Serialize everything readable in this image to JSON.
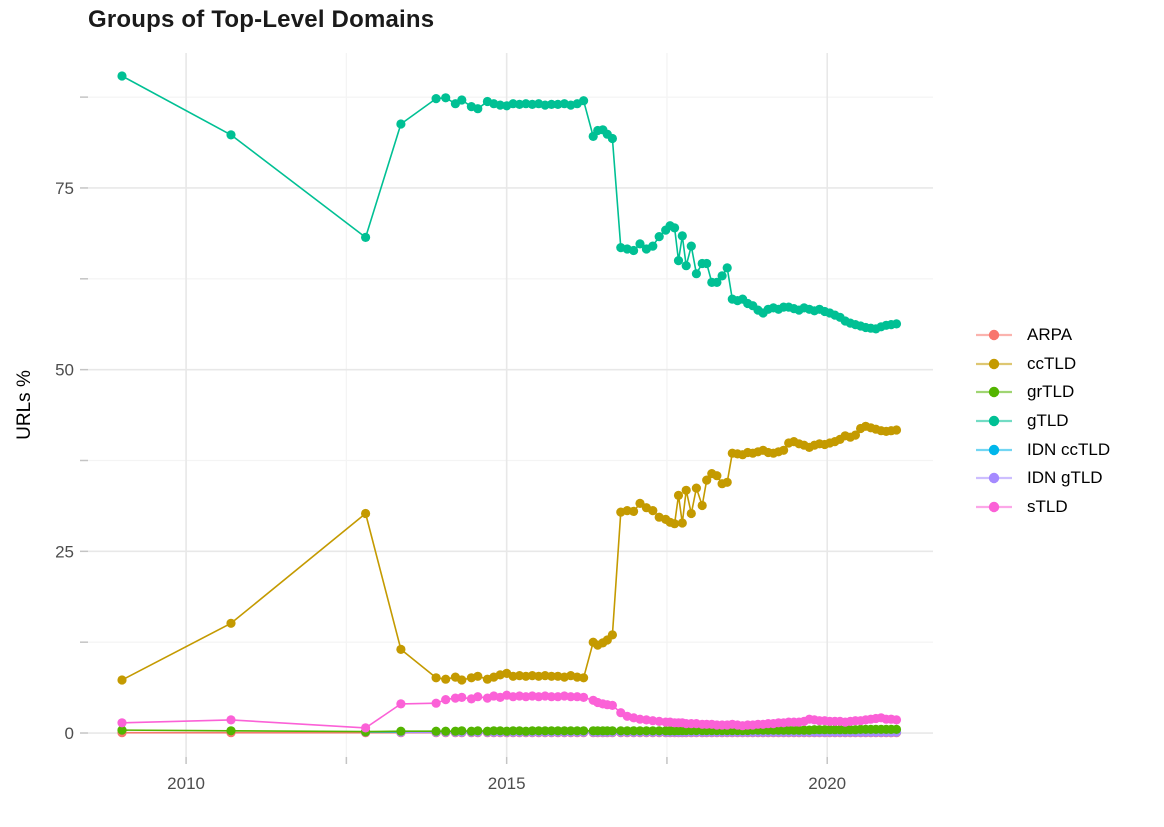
{
  "title": "Groups of Top-Level Domains",
  "y_axis": {
    "label": "URLs %",
    "tick_labels": [
      "0",
      "25",
      "50",
      "75"
    ],
    "tick_values": [
      0,
      25,
      50,
      75
    ],
    "minor_values": [
      12.5,
      37.5,
      62.5,
      87.5
    ]
  },
  "x_axis": {
    "tick_labels": [
      "2010",
      "2015",
      "2020"
    ],
    "tick_values": [
      2010,
      2015,
      2020
    ],
    "minor_values": [
      2012.5,
      2017.5
    ]
  },
  "colors": {
    "background": "#ffffff",
    "grid_major": "#e8e8e8",
    "grid_minor": "#f4f4f4",
    "tick_mark": "#c4c4c4",
    "axis_text": "#4d4d4d",
    "title_text": "#1a1a1a"
  },
  "legend": {
    "entries": [
      {
        "label": "ARPA",
        "color": "#F8766D"
      },
      {
        "label": "ccTLD",
        "color": "#C49A00"
      },
      {
        "label": "grTLD",
        "color": "#53B400"
      },
      {
        "label": "gTLD",
        "color": "#00C094"
      },
      {
        "label": "IDN ccTLD",
        "color": "#00B6EB"
      },
      {
        "label": "IDN gTLD",
        "color": "#A58AFF"
      },
      {
        "label": "sTLD",
        "color": "#FB61D7"
      }
    ]
  },
  "chart_data": {
    "type": "line",
    "title": "Groups of Top-Level Domains",
    "xlabel": "",
    "ylabel": "URLs %",
    "xlim": [
      2008.47,
      2021.65
    ],
    "ylim": [
      -3.3,
      93.57
    ],
    "x_breaks": [
      2010,
      2015,
      2020
    ],
    "x_minor_breaks": [
      2012.5,
      2017.5
    ],
    "y_breaks": [
      0,
      25,
      50,
      75
    ],
    "y_minor_breaks": [
      12.5,
      37.5,
      62.5,
      87.5
    ],
    "grid": true,
    "legend_position": "right",
    "marker_radius": 4.6,
    "x": [
      2009.0,
      2010.7,
      2012.8,
      2013.35,
      2013.9,
      2014.05,
      2014.2,
      2014.3,
      2014.45,
      2014.55,
      2014.7,
      2014.8,
      2014.9,
      2015.0,
      2015.1,
      2015.2,
      2015.3,
      2015.4,
      2015.5,
      2015.6,
      2015.7,
      2015.8,
      2015.9,
      2016.0,
      2016.1,
      2016.2,
      2016.35,
      2016.42,
      2016.5,
      2016.57,
      2016.65,
      2016.78,
      2016.88,
      2016.98,
      2017.08,
      2017.18,
      2017.28,
      2017.38,
      2017.48,
      2017.55,
      2017.62,
      2017.68,
      2017.74,
      2017.8,
      2017.88,
      2017.96,
      2018.05,
      2018.12,
      2018.2,
      2018.28,
      2018.36,
      2018.44,
      2018.52,
      2018.6,
      2018.68,
      2018.76,
      2018.84,
      2018.92,
      2019.0,
      2019.08,
      2019.16,
      2019.24,
      2019.32,
      2019.4,
      2019.48,
      2019.56,
      2019.64,
      2019.72,
      2019.8,
      2019.88,
      2019.96,
      2020.04,
      2020.12,
      2020.2,
      2020.28,
      2020.36,
      2020.44,
      2020.52,
      2020.6,
      2020.68,
      2020.76,
      2020.84,
      2020.92,
      2021.0,
      2021.08
    ],
    "series": [
      {
        "name": "ARPA",
        "color": "#F8766D",
        "y": [
          0.05,
          0.05,
          0.05,
          0.05,
          0.05,
          0.05,
          0.05,
          0.05,
          0.05,
          0.05,
          0.05,
          0.05,
          0.05,
          0.05,
          0.05,
          0.05,
          0.05,
          0.05,
          0.05,
          0.05,
          0.05,
          0.05,
          0.05,
          0.05,
          0.05,
          0.05,
          0.05,
          0.05,
          0.05,
          0.05,
          0.05,
          0.05,
          0.05,
          0.05,
          0.05,
          0.05,
          0.05,
          0.05,
          0.05,
          0.05,
          0.05,
          0.05,
          0.05,
          0.05,
          0.05,
          0.05,
          0.05,
          0.05,
          0.05,
          0.05,
          0.05,
          0.05,
          0.05,
          0.05,
          0.05,
          0.05,
          0.05,
          0.05,
          0.05,
          0.05,
          0.05,
          0.05,
          0.05,
          0.05,
          0.05,
          0.05,
          0.05,
          0.05,
          0.05,
          0.05,
          0.05,
          0.05,
          0.05,
          0.05,
          0.05,
          0.05,
          0.05,
          0.05,
          0.05,
          0.05,
          0.05,
          0.05,
          0.05,
          0.05,
          0.05
        ]
      },
      {
        "name": "IDN ccTLD",
        "color": "#00B6EB",
        "y": [
          null,
          null,
          0.15,
          0.15,
          0.15,
          0.15,
          0.15,
          0.15,
          0.15,
          0.15,
          0.15,
          0.15,
          0.15,
          0.15,
          0.15,
          0.15,
          0.15,
          0.15,
          0.15,
          0.15,
          0.15,
          0.15,
          0.15,
          0.15,
          0.15,
          0.15,
          0.15,
          0.15,
          0.15,
          0.15,
          0.15,
          0.15,
          0.15,
          0.15,
          0.15,
          0.15,
          0.15,
          0.15,
          0.15,
          0.15,
          0.15,
          0.15,
          0.15,
          0.15,
          0.15,
          0.15,
          0.15,
          0.15,
          0.15,
          0.15,
          0.15,
          0.15,
          0.15,
          0.15,
          0.15,
          0.15,
          0.15,
          0.15,
          0.15,
          0.15,
          0.15,
          0.15,
          0.15,
          0.15,
          0.15,
          0.15,
          0.15,
          0.15,
          0.15,
          0.15,
          0.15,
          0.15,
          0.15,
          0.15,
          0.15,
          0.15,
          0.15,
          0.15,
          0.15,
          0.15,
          0.15,
          0.15,
          0.15,
          0.15,
          0.15
        ]
      },
      {
        "name": "IDN gTLD",
        "color": "#A58AFF",
        "y": [
          null,
          null,
          null,
          0.1,
          0.1,
          0.1,
          0.1,
          0.1,
          0.1,
          0.1,
          0.1,
          0.1,
          0.1,
          0.1,
          0.1,
          0.1,
          0.1,
          0.1,
          0.1,
          0.1,
          0.1,
          0.1,
          0.1,
          0.1,
          0.1,
          0.1,
          0.1,
          0.1,
          0.1,
          0.1,
          0.1,
          0.1,
          0.1,
          0.1,
          0.1,
          0.1,
          0.1,
          0.1,
          0.1,
          0.1,
          0.1,
          0.1,
          0.1,
          0.1,
          0.1,
          0.1,
          0.1,
          0.1,
          0.1,
          0.1,
          0.1,
          0.1,
          0.1,
          0.1,
          0.1,
          0.1,
          0.1,
          0.1,
          0.1,
          0.1,
          0.1,
          0.1,
          0.1,
          0.1,
          0.1,
          0.1,
          0.1,
          0.1,
          0.1,
          0.1,
          0.1,
          0.1,
          0.1,
          0.1,
          0.1,
          0.1,
          0.1,
          0.1,
          0.1,
          0.1,
          0.1,
          0.1,
          0.1,
          0.1,
          0.1
        ]
      },
      {
        "name": "grTLD",
        "color": "#53B400",
        "y": [
          0.4,
          0.3,
          0.2,
          0.25,
          0.25,
          0.25,
          0.25,
          0.3,
          0.25,
          0.3,
          0.25,
          0.3,
          0.3,
          0.25,
          0.3,
          0.3,
          0.25,
          0.3,
          0.3,
          0.3,
          0.3,
          0.3,
          0.3,
          0.3,
          0.3,
          0.3,
          0.3,
          0.3,
          0.3,
          0.3,
          0.3,
          0.3,
          0.3,
          0.3,
          0.3,
          0.3,
          0.3,
          0.3,
          0.3,
          0.3,
          0.3,
          0.35,
          0.35,
          0.35,
          0.35,
          0.35,
          0.35,
          0.35,
          0.35,
          0.35,
          0.35,
          0.35,
          0.35,
          0.35,
          0.35,
          0.35,
          0.4,
          0.4,
          0.4,
          0.4,
          0.4,
          0.4,
          0.4,
          0.4,
          0.4,
          0.4,
          0.4,
          0.4,
          0.45,
          0.45,
          0.45,
          0.45,
          0.45,
          0.45,
          0.45,
          0.45,
          0.45,
          0.5,
          0.5,
          0.5,
          0.5,
          0.5,
          0.5,
          0.5,
          0.5
        ]
      },
      {
        "name": "sTLD",
        "color": "#FB61D7",
        "y": [
          1.4,
          1.8,
          0.7,
          4.0,
          4.1,
          4.6,
          4.8,
          4.9,
          4.7,
          5.0,
          4.8,
          5.1,
          4.9,
          5.2,
          5.0,
          5.1,
          5.0,
          5.1,
          5.0,
          5.1,
          5.0,
          5.0,
          5.1,
          5.0,
          5.0,
          4.9,
          4.5,
          4.2,
          4.0,
          3.9,
          3.8,
          2.8,
          2.3,
          2.1,
          1.9,
          1.8,
          1.7,
          1.6,
          1.5,
          1.5,
          1.4,
          1.4,
          1.4,
          1.3,
          1.3,
          1.3,
          1.2,
          1.2,
          1.2,
          1.1,
          1.1,
          1.1,
          1.2,
          1.1,
          1.0,
          1.1,
          1.1,
          1.2,
          1.2,
          1.3,
          1.3,
          1.4,
          1.4,
          1.5,
          1.5,
          1.5,
          1.6,
          1.9,
          1.8,
          1.7,
          1.7,
          1.6,
          1.6,
          1.6,
          1.5,
          1.6,
          1.7,
          1.7,
          1.8,
          1.9,
          2.0,
          2.1,
          1.9,
          1.9,
          1.8
        ]
      },
      {
        "name": "ccTLD",
        "color": "#C49A00",
        "y": [
          7.3,
          15.1,
          30.2,
          11.5,
          7.6,
          7.4,
          7.7,
          7.3,
          7.6,
          7.8,
          7.4,
          7.7,
          8.0,
          8.2,
          7.8,
          7.9,
          7.8,
          7.9,
          7.8,
          7.9,
          7.8,
          7.8,
          7.7,
          7.9,
          7.7,
          7.6,
          12.5,
          12.1,
          12.4,
          12.8,
          13.5,
          30.4,
          30.6,
          30.5,
          31.6,
          31.0,
          30.6,
          29.7,
          29.4,
          29.0,
          28.8,
          32.7,
          28.9,
          33.4,
          30.2,
          33.7,
          31.3,
          34.8,
          35.7,
          35.4,
          34.3,
          34.5,
          38.5,
          38.4,
          38.3,
          38.6,
          38.5,
          38.7,
          38.9,
          38.6,
          38.5,
          38.7,
          38.9,
          39.9,
          40.1,
          39.8,
          39.6,
          39.3,
          39.6,
          39.8,
          39.7,
          39.9,
          40.1,
          40.4,
          40.9,
          40.7,
          41.0,
          41.9,
          42.2,
          42.0,
          41.8,
          41.6,
          41.5,
          41.6,
          41.7
        ]
      },
      {
        "name": "gTLD",
        "color": "#00C094",
        "y": [
          90.4,
          82.3,
          68.2,
          83.8,
          87.3,
          87.4,
          86.6,
          87.1,
          86.2,
          85.9,
          86.9,
          86.6,
          86.4,
          86.3,
          86.6,
          86.5,
          86.6,
          86.5,
          86.6,
          86.4,
          86.5,
          86.5,
          86.6,
          86.4,
          86.6,
          87.0,
          82.1,
          82.9,
          83.0,
          82.4,
          81.8,
          66.8,
          66.6,
          66.4,
          67.3,
          66.6,
          67.0,
          68.3,
          69.2,
          69.8,
          69.5,
          65.0,
          68.4,
          64.3,
          67.0,
          63.2,
          64.6,
          64.6,
          62.0,
          62.0,
          62.9,
          64.0,
          59.7,
          59.5,
          59.7,
          59.1,
          58.8,
          58.2,
          57.8,
          58.3,
          58.5,
          58.3,
          58.6,
          58.6,
          58.4,
          58.2,
          58.5,
          58.3,
          58.1,
          58.3,
          58.0,
          57.8,
          57.5,
          57.2,
          56.7,
          56.4,
          56.2,
          56.0,
          55.8,
          55.7,
          55.6,
          55.9,
          56.1,
          56.2,
          56.3
        ]
      }
    ]
  }
}
